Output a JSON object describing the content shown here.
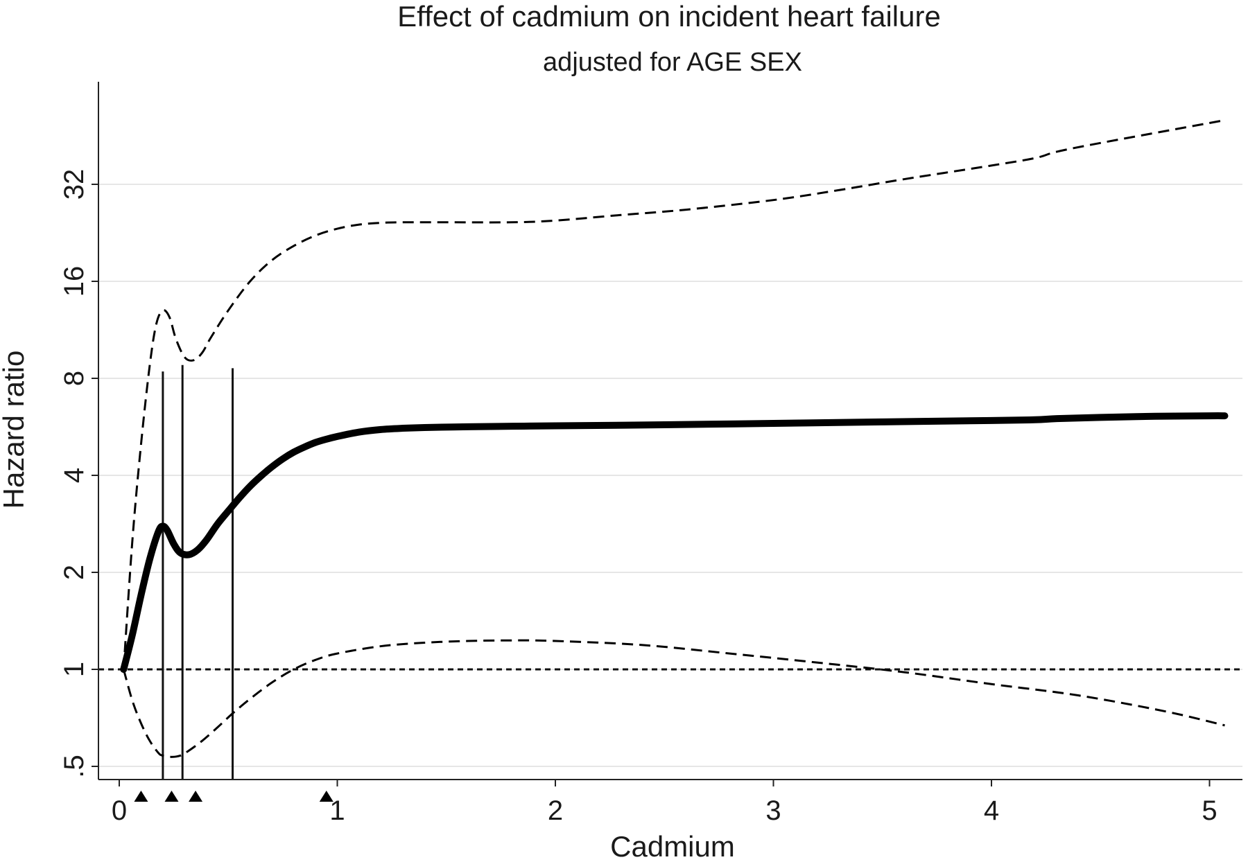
{
  "chart_data": {
    "type": "line",
    "title": "Effect of cadmium on incident heart failure",
    "subtitle": "adjusted for AGE SEX",
    "xlabel": "Cadmium",
    "ylabel": "Hazard ratio",
    "y_scale": "log2",
    "xlim": [
      -0.05,
      5.1
    ],
    "ylim": [
      0.47,
      60
    ],
    "x_ticks": [
      {
        "value": 0,
        "label": "0"
      },
      {
        "value": 1,
        "label": "1"
      },
      {
        "value": 2,
        "label": "2"
      },
      {
        "value": 3,
        "label": "3"
      },
      {
        "value": 4,
        "label": "4"
      },
      {
        "value": 5,
        "label": "5"
      }
    ],
    "y_ticks": [
      {
        "value": 0.5,
        "label": ".5"
      },
      {
        "value": 1,
        "label": "1"
      },
      {
        "value": 2,
        "label": "2"
      },
      {
        "value": 4,
        "label": "4"
      },
      {
        "value": 8,
        "label": "8"
      },
      {
        "value": 16,
        "label": "16"
      },
      {
        "value": 32,
        "label": "32"
      }
    ],
    "grid": true,
    "reference_line": {
      "y": 1,
      "style": "dotted"
    },
    "knots": [
      {
        "x": 0.2,
        "y_top": 8.4
      },
      {
        "x": 0.29,
        "y_top": 8.8
      },
      {
        "x": 0.52,
        "y_top": 8.6
      }
    ],
    "marker_x": [
      0.1,
      0.24,
      0.35,
      0.95
    ],
    "series": [
      {
        "role": "estimate",
        "style": "solid-thick",
        "x": [
          0.02,
          0.06,
          0.1,
          0.14,
          0.18,
          0.2,
          0.22,
          0.25,
          0.28,
          0.32,
          0.36,
          0.4,
          0.45,
          0.5,
          0.55,
          0.6,
          0.65,
          0.7,
          0.75,
          0.8,
          0.85,
          0.9,
          0.95,
          1.0,
          1.1,
          1.2,
          1.3,
          1.4,
          1.6,
          1.8,
          2.0,
          2.5,
          3.0,
          3.5,
          4.0,
          4.2,
          4.3,
          4.5,
          4.75,
          5.0,
          5.07
        ],
        "y": [
          1.0,
          1.28,
          1.7,
          2.2,
          2.68,
          2.78,
          2.7,
          2.45,
          2.3,
          2.27,
          2.35,
          2.52,
          2.82,
          3.1,
          3.4,
          3.7,
          3.98,
          4.25,
          4.5,
          4.72,
          4.9,
          5.06,
          5.18,
          5.28,
          5.45,
          5.55,
          5.6,
          5.63,
          5.66,
          5.68,
          5.7,
          5.74,
          5.8,
          5.86,
          5.92,
          5.95,
          6.0,
          6.05,
          6.1,
          6.12,
          6.12
        ]
      },
      {
        "role": "upper-ci",
        "style": "dashed",
        "x": [
          0.02,
          0.06,
          0.1,
          0.14,
          0.17,
          0.2,
          0.23,
          0.26,
          0.3,
          0.34,
          0.38,
          0.42,
          0.5,
          0.6,
          0.7,
          0.8,
          0.9,
          1.0,
          1.1,
          1.2,
          1.3,
          1.5,
          1.8,
          2.0,
          2.3,
          2.6,
          3.0,
          3.3,
          3.6,
          4.0,
          4.2,
          4.3,
          4.5,
          5.0,
          5.07
        ],
        "y": [
          1.0,
          2.5,
          5.0,
          8.8,
          11.8,
          13.0,
          12.4,
          10.6,
          9.3,
          9.1,
          9.6,
          10.7,
          13.0,
          16.0,
          18.6,
          20.6,
          22.2,
          23.3,
          24.0,
          24.3,
          24.4,
          24.4,
          24.4,
          24.7,
          25.7,
          26.7,
          28.6,
          30.7,
          33.2,
          36.6,
          38.6,
          40.4,
          43.0,
          49.6,
          50.6
        ]
      },
      {
        "role": "lower-ci",
        "style": "dashed",
        "x": [
          0.02,
          0.06,
          0.1,
          0.14,
          0.18,
          0.2,
          0.24,
          0.28,
          0.32,
          0.38,
          0.45,
          0.52,
          0.6,
          0.7,
          0.8,
          0.9,
          1.0,
          1.2,
          1.4,
          1.6,
          1.8,
          2.0,
          2.4,
          2.8,
          3.2,
          3.6,
          4.0,
          4.4,
          4.8,
          5.07
        ],
        "y": [
          1.0,
          0.8,
          0.68,
          0.6,
          0.55,
          0.54,
          0.535,
          0.54,
          0.56,
          0.6,
          0.66,
          0.73,
          0.81,
          0.91,
          1.0,
          1.07,
          1.12,
          1.18,
          1.21,
          1.225,
          1.23,
          1.225,
          1.19,
          1.12,
          1.05,
          0.98,
          0.9,
          0.83,
          0.74,
          0.67
        ]
      }
    ]
  }
}
